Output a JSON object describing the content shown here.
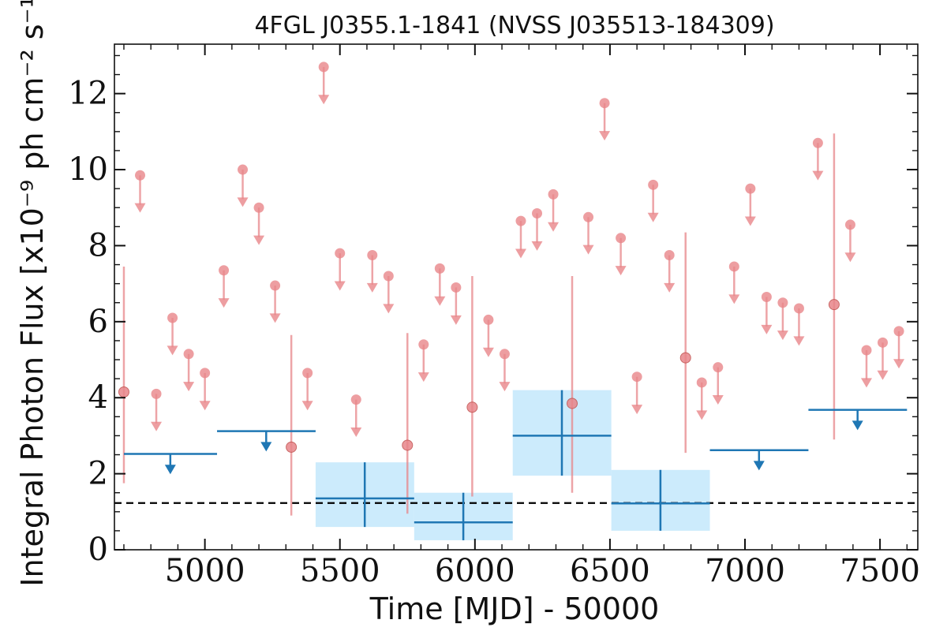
{
  "chart_data": {
    "type": "scatter",
    "title": "4FGL J0355.1-1841 (NVSS J035513-184309)",
    "xlabel": "Time [MJD] - 50000",
    "ylabel": "Integral Photon Flux [x10⁻⁹ ph cm⁻² s⁻¹]",
    "xlim": [
      4665,
      7640
    ],
    "ylim": [
      0,
      13.3
    ],
    "x_ticks": [
      5000,
      5500,
      6000,
      6500,
      7000,
      7500
    ],
    "x_tick_labels": [
      "5000",
      "5500",
      "6000",
      "6500",
      "7000",
      "7500"
    ],
    "y_ticks": [
      0,
      2,
      4,
      6,
      8,
      10,
      12
    ],
    "y_tick_labels": [
      "0",
      "2",
      "4",
      "6",
      "8",
      "10",
      "12"
    ],
    "grid": false,
    "colors": {
      "short_bins": "#e8868a",
      "long_bins": "#1f77b4",
      "long_bins_band": "#bfe6fb",
      "average_line": "#000000"
    },
    "average_flux": 1.23,
    "short_bins": {
      "bin_width_days": 60,
      "detections": [
        {
          "x": 4700,
          "y": 4.15,
          "ylo": 1.75,
          "yhi": 7.45
        },
        {
          "x": 5320,
          "y": 2.7,
          "ylo": 0.9,
          "yhi": 5.65
        },
        {
          "x": 5750,
          "y": 2.75,
          "ylo": 0.95,
          "yhi": 5.7
        },
        {
          "x": 5990,
          "y": 3.75,
          "ylo": 1.4,
          "yhi": 7.2
        },
        {
          "x": 6360,
          "y": 3.85,
          "ylo": 1.5,
          "yhi": 7.2
        },
        {
          "x": 6780,
          "y": 5.05,
          "ylo": 2.55,
          "yhi": 8.35
        },
        {
          "x": 7330,
          "y": 6.45,
          "ylo": 2.9,
          "yhi": 10.95
        }
      ],
      "upper_limits": [
        {
          "x": 4760,
          "y": 9.85
        },
        {
          "x": 4820,
          "y": 4.1
        },
        {
          "x": 4880,
          "y": 6.1
        },
        {
          "x": 4940,
          "y": 5.15
        },
        {
          "x": 5000,
          "y": 4.65
        },
        {
          "x": 5070,
          "y": 7.35
        },
        {
          "x": 5140,
          "y": 10.0
        },
        {
          "x": 5200,
          "y": 9.0
        },
        {
          "x": 5260,
          "y": 6.95
        },
        {
          "x": 5380,
          "y": 4.65
        },
        {
          "x": 5440,
          "y": 12.7
        },
        {
          "x": 5500,
          "y": 7.8
        },
        {
          "x": 5560,
          "y": 3.95
        },
        {
          "x": 5620,
          "y": 7.75
        },
        {
          "x": 5680,
          "y": 7.2
        },
        {
          "x": 5810,
          "y": 5.4
        },
        {
          "x": 5870,
          "y": 7.4
        },
        {
          "x": 5930,
          "y": 6.9
        },
        {
          "x": 6050,
          "y": 6.05
        },
        {
          "x": 6110,
          "y": 5.15
        },
        {
          "x": 6170,
          "y": 8.65
        },
        {
          "x": 6230,
          "y": 8.85
        },
        {
          "x": 6290,
          "y": 9.35
        },
        {
          "x": 6420,
          "y": 8.75
        },
        {
          "x": 6480,
          "y": 11.75
        },
        {
          "x": 6540,
          "y": 8.2
        },
        {
          "x": 6600,
          "y": 4.55
        },
        {
          "x": 6660,
          "y": 9.6
        },
        {
          "x": 6720,
          "y": 7.75
        },
        {
          "x": 6840,
          "y": 4.4
        },
        {
          "x": 6900,
          "y": 4.8
        },
        {
          "x": 6960,
          "y": 7.45
        },
        {
          "x": 7020,
          "y": 9.5
        },
        {
          "x": 7080,
          "y": 6.65
        },
        {
          "x": 7140,
          "y": 6.5
        },
        {
          "x": 7200,
          "y": 6.35
        },
        {
          "x": 7270,
          "y": 10.7
        },
        {
          "x": 7390,
          "y": 8.55
        },
        {
          "x": 7450,
          "y": 5.25
        },
        {
          "x": 7510,
          "y": 5.45
        },
        {
          "x": 7570,
          "y": 5.75
        }
      ]
    },
    "long_bins": {
      "detections": [
        {
          "x0": 5410,
          "x1": 5775,
          "xc": 5592,
          "y": 1.35,
          "ylo": 0.6,
          "yhi": 2.3
        },
        {
          "x0": 5775,
          "x1": 6140,
          "xc": 5957,
          "y": 0.72,
          "ylo": 0.25,
          "yhi": 1.5
        },
        {
          "x0": 6140,
          "x1": 6505,
          "xc": 6322,
          "y": 3.0,
          "ylo": 1.95,
          "yhi": 4.2
        },
        {
          "x0": 6505,
          "x1": 6870,
          "xc": 6687,
          "y": 1.22,
          "ylo": 0.5,
          "yhi": 2.1
        }
      ],
      "upper_limits": [
        {
          "x0": 4700,
          "x1": 5045,
          "xc": 4872,
          "y": 2.52
        },
        {
          "x0": 5045,
          "x1": 5410,
          "xc": 5227,
          "y": 3.12
        },
        {
          "x0": 6870,
          "x1": 7235,
          "xc": 7052,
          "y": 2.62
        },
        {
          "x0": 7235,
          "x1": 7600,
          "xc": 7417,
          "y": 3.68
        }
      ]
    }
  }
}
